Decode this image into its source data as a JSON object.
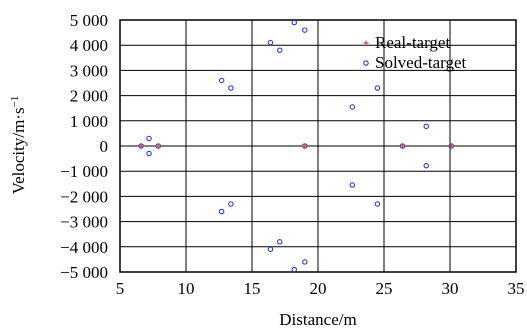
{
  "chart_data": {
    "type": "scatter",
    "xlabel": "Distance/m",
    "ylabel": "Velocity/m·s",
    "ylabel_superscript": "−1",
    "xlim": [
      5,
      35
    ],
    "ylim": [
      -5000,
      5000
    ],
    "x_ticks": [
      5,
      10,
      15,
      20,
      25,
      30,
      35
    ],
    "x_tick_labels": [
      "5",
      "10",
      "15",
      "20",
      "25",
      "30",
      "35"
    ],
    "y_ticks": [
      5000,
      4000,
      3000,
      2000,
      1000,
      0,
      -1000,
      -2000,
      -3000,
      -4000,
      -5000
    ],
    "y_tick_labels": [
      "5 000",
      "4 000",
      "3 000",
      "2 000",
      "1 000",
      "0",
      "−1 000",
      "−2 000",
      "−3 000",
      "−4 000",
      "−5 000"
    ],
    "grid": true,
    "legend_position": "top-right",
    "series": [
      {
        "name": "Real-target",
        "marker": "plus",
        "color": "#e0302b",
        "x": [
          6.6,
          7.9,
          19.0,
          26.4,
          30.1
        ],
        "y": [
          0,
          0,
          0,
          0,
          0
        ]
      },
      {
        "name": "Solved-target",
        "marker": "circle",
        "color": "#1f3fd6",
        "x": [
          6.6,
          7.2,
          7.2,
          7.9,
          12.7,
          13.4,
          16.4,
          17.1,
          18.2,
          19.0,
          12.7,
          13.4,
          16.4,
          17.1,
          18.2,
          19.0,
          19.0,
          22.6,
          24.5,
          22.6,
          24.5,
          26.4,
          28.2,
          28.2,
          30.1
        ],
        "y": [
          0,
          300,
          -300,
          0,
          2600,
          2300,
          4100,
          3800,
          4900,
          4600,
          -2600,
          -2300,
          -4100,
          -3800,
          -4900,
          -4600,
          0,
          1550,
          2300,
          -1550,
          -2300,
          0,
          780,
          -780,
          0
        ]
      }
    ]
  }
}
